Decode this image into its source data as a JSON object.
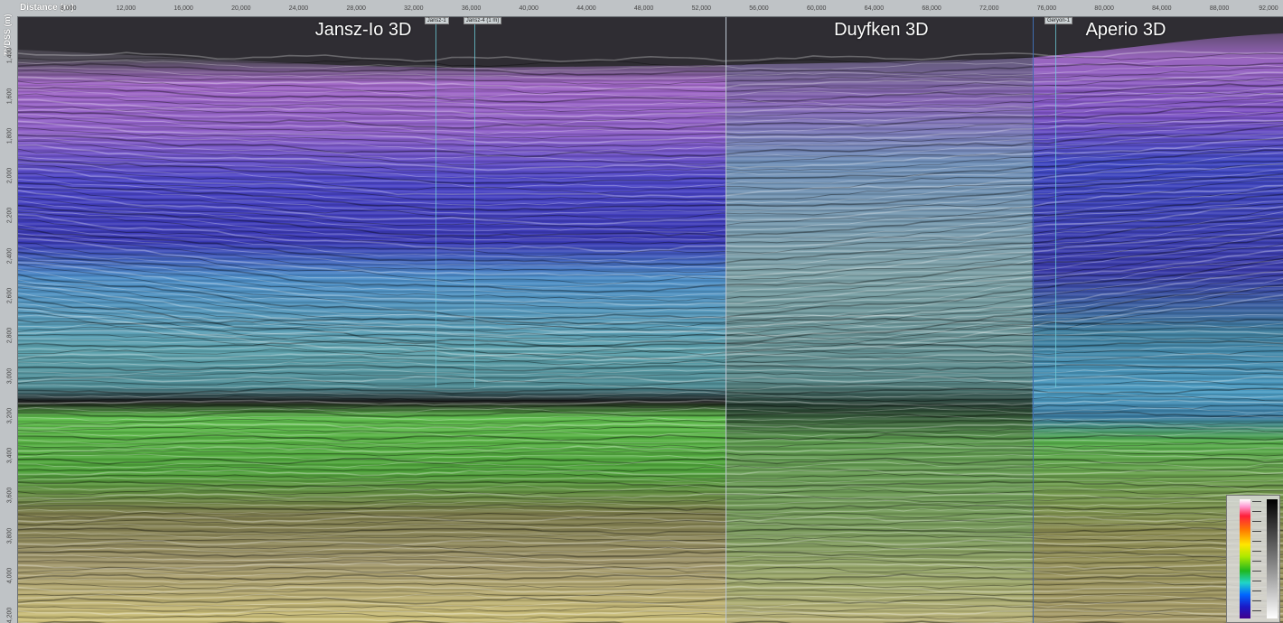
{
  "ruler": {
    "x_title": "Distance (m)",
    "y_title": "TVDSS (m)",
    "x_ticks": [
      {
        "label": "8,000",
        "x": 8000
      },
      {
        "label": "12,000",
        "x": 12000
      },
      {
        "label": "16,000",
        "x": 16000
      },
      {
        "label": "20,000",
        "x": 20000
      },
      {
        "label": "24,000",
        "x": 24000
      },
      {
        "label": "28,000",
        "x": 28000
      },
      {
        "label": "32,000",
        "x": 32000
      },
      {
        "label": "36,000",
        "x": 36000
      },
      {
        "label": "40,000",
        "x": 40000
      },
      {
        "label": "44,000",
        "x": 44000
      },
      {
        "label": "48,000",
        "x": 48000
      },
      {
        "label": "52,000",
        "x": 52000
      },
      {
        "label": "56,000",
        "x": 56000
      },
      {
        "label": "60,000",
        "x": 60000
      },
      {
        "label": "64,000",
        "x": 64000
      },
      {
        "label": "68,000",
        "x": 68000
      },
      {
        "label": "72,000",
        "x": 72000
      },
      {
        "label": "76,000",
        "x": 76000
      },
      {
        "label": "80,000",
        "x": 80000
      },
      {
        "label": "84,000",
        "x": 84000
      },
      {
        "label": "88,000",
        "x": 88000
      },
      {
        "label": "92,000",
        "x": 92000
      }
    ],
    "y_ticks": [
      {
        "label": "1,400",
        "y": 1400
      },
      {
        "label": "1,600",
        "y": 1600
      },
      {
        "label": "1,800",
        "y": 1800
      },
      {
        "label": "2,000",
        "y": 2000
      },
      {
        "label": "2,200",
        "y": 2200
      },
      {
        "label": "2,400",
        "y": 2400
      },
      {
        "label": "2,600",
        "y": 2600
      },
      {
        "label": "2,800",
        "y": 2800
      },
      {
        "label": "3,000",
        "y": 3000
      },
      {
        "label": "3,200",
        "y": 3200
      },
      {
        "label": "3,400",
        "y": 3400
      },
      {
        "label": "3,600",
        "y": 3600
      },
      {
        "label": "3,800",
        "y": 3800
      },
      {
        "label": "4,000",
        "y": 4000
      },
      {
        "label": "4,200",
        "y": 4200
      }
    ]
  },
  "surveys": [
    {
      "name": "Jansz-Io 3D",
      "x": 28500
    },
    {
      "name": "Duyfken 3D",
      "x": 64500
    },
    {
      "name": "Aperio 3D",
      "x": 81500
    }
  ],
  "survey_boundaries_x": [
    53700,
    75000
  ],
  "wells": [
    {
      "label": "Jansz-1",
      "x": 33500
    },
    {
      "label": "Jansz-4 (1 m)",
      "x": 36200
    },
    {
      "label": "Geryon-1",
      "x": 76600
    }
  ],
  "colors": {
    "boundary": "#bcc6d0",
    "boundary_right": "#3f6db0",
    "well": "#6ecfdc"
  }
}
